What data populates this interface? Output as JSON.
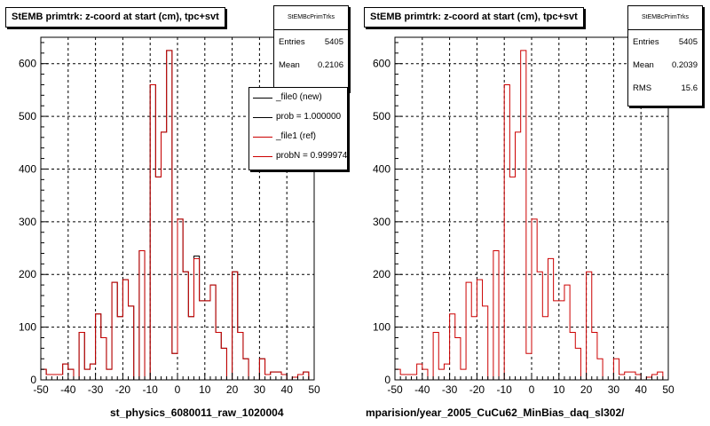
{
  "colors": {
    "ref_line": "#cc0000",
    "new_line": "#000000",
    "grid": "#000000"
  },
  "panels": [
    {
      "title": "StEMB primtrk: z-coord at start (cm), tpc+svt",
      "stats": {
        "name": "StEMBcPrimTrks",
        "rows": [
          {
            "label": "Entries",
            "value": "5405"
          },
          {
            "label": "Mean",
            "value": "0.2106"
          }
        ]
      },
      "legend": [
        {
          "label": "_file0 (new)",
          "color": "#000000"
        },
        {
          "label": "prob = 1.000000",
          "color": "#000000"
        },
        {
          "label": "_file1 (ref)",
          "color": "#cc0000"
        },
        {
          "label": "probN = 0.999974",
          "color": "#cc0000"
        }
      ],
      "footer": "st_physics_6080011_raw_1020004"
    },
    {
      "title": "StEMB primtrk: z-coord at start (cm), tpc+svt",
      "stats": {
        "name": "StEMBcPrimTrks",
        "rows": [
          {
            "label": "Entries",
            "value": "5405"
          },
          {
            "label": "Mean",
            "value": "0.2039"
          },
          {
            "label": "RMS",
            "value": "15.6"
          }
        ]
      },
      "legend": [],
      "footer": "mparision/year_2005_CuCu62_MinBias_daq_sl302/"
    }
  ],
  "chart_data": [
    {
      "type": "histogram",
      "title": "StEMB primtrk: z-coord at start (cm), tpc+svt",
      "xlim": [
        -50,
        50
      ],
      "ylim": [
        0,
        650
      ],
      "xticks": [
        -50,
        -40,
        -30,
        -20,
        -10,
        0,
        10,
        20,
        30,
        40,
        50
      ],
      "yticks": [
        0,
        100,
        200,
        300,
        400,
        500,
        600
      ],
      "grid": true,
      "legend_position": "top-right",
      "bin_edges_start": -50,
      "bin_width": 2,
      "series": [
        {
          "name": "_file0 (new)",
          "color": "#000000",
          "values": [
            20,
            10,
            10,
            10,
            30,
            20,
            0,
            90,
            20,
            30,
            125,
            80,
            20,
            185,
            120,
            190,
            140,
            0,
            245,
            0,
            560,
            385,
            470,
            625,
            50,
            305,
            205,
            120,
            235,
            150,
            150,
            180,
            90,
            60,
            0,
            205,
            90,
            40,
            0,
            0,
            40,
            10,
            15,
            15,
            10,
            0,
            5,
            10,
            15,
            0
          ]
        },
        {
          "name": "_file1 (ref)",
          "color": "#cc0000",
          "values": [
            20,
            10,
            10,
            10,
            30,
            20,
            0,
            90,
            20,
            30,
            125,
            80,
            20,
            185,
            120,
            190,
            140,
            0,
            245,
            0,
            560,
            385,
            470,
            625,
            50,
            305,
            205,
            120,
            230,
            150,
            150,
            180,
            90,
            60,
            0,
            205,
            90,
            40,
            0,
            0,
            40,
            10,
            15,
            15,
            10,
            0,
            5,
            10,
            15,
            0
          ]
        }
      ]
    },
    {
      "type": "histogram",
      "title": "StEMB primtrk: z-coord at start (cm), tpc+svt",
      "xlim": [
        -50,
        50
      ],
      "ylim": [
        0,
        650
      ],
      "xticks": [
        -50,
        -40,
        -30,
        -20,
        -10,
        0,
        10,
        20,
        30,
        40,
        50
      ],
      "yticks": [
        0,
        100,
        200,
        300,
        400,
        500,
        600
      ],
      "grid": true,
      "bin_edges_start": -50,
      "bin_width": 2,
      "series": [
        {
          "name": "_file1 (ref)",
          "color": "#cc0000",
          "values": [
            20,
            10,
            10,
            10,
            30,
            20,
            0,
            90,
            20,
            30,
            125,
            80,
            20,
            185,
            120,
            190,
            140,
            0,
            245,
            0,
            560,
            385,
            470,
            625,
            50,
            305,
            205,
            120,
            230,
            150,
            150,
            180,
            90,
            60,
            0,
            205,
            90,
            40,
            0,
            0,
            40,
            10,
            15,
            15,
            10,
            0,
            5,
            10,
            15,
            0
          ]
        }
      ]
    }
  ]
}
